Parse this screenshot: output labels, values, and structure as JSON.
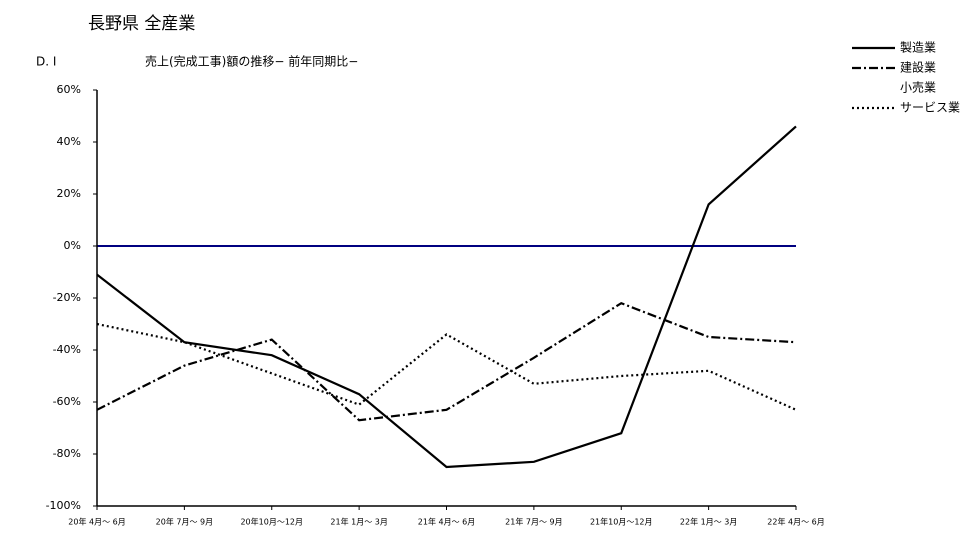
{
  "chart_data": {
    "type": "line",
    "title": "長野県 全産業",
    "y_label": "D. I",
    "subtitle": "売上(完成工事)額の推移− 前年同期比−",
    "categories": [
      "20年 4月～ 6月",
      "20年 7月～ 9月",
      "20年10月～12月",
      "21年 1月～ 3月",
      "21年 4月～ 6月",
      "21年 7月～ 9月",
      "21年10月～12月",
      "22年 1月～ 3月",
      "22年 4月～ 6月"
    ],
    "series": [
      {
        "name": "製造業",
        "color": "#000000",
        "dash": "solid",
        "values": [
          -11,
          -37,
          -42,
          -57,
          -85,
          -83,
          -72,
          16,
          46
        ]
      },
      {
        "name": "建設業",
        "color": "#000000",
        "dash": "dashdot",
        "values": [
          -63,
          -46,
          -36,
          -67,
          -63,
          -43,
          -22,
          -35,
          -37
        ]
      },
      {
        "name": "小売業",
        "color": "#ffffff",
        "dash": "solid",
        "values": [
          null,
          null,
          null,
          null,
          null,
          null,
          null,
          null,
          null
        ]
      },
      {
        "name": "サービス業",
        "color": "#000000",
        "dash": "dotted",
        "values": [
          -30,
          -37,
          -49,
          -61,
          -34,
          -53,
          -50,
          -48,
          -63
        ]
      }
    ],
    "ylim": [
      -100,
      60
    ],
    "yticks": [
      {
        "value": -100,
        "label": "-100%"
      },
      {
        "value": -80,
        "label": "-80%"
      },
      {
        "value": -60,
        "label": "-60%"
      },
      {
        "value": -40,
        "label": "-40%"
      },
      {
        "value": -20,
        "label": "-20%"
      },
      {
        "value": 0,
        "label": "0%"
      },
      {
        "value": 20,
        "label": "20%"
      },
      {
        "value": 40,
        "label": "40%"
      },
      {
        "value": 60,
        "label": "60%"
      }
    ],
    "zero_line_color": "#000080",
    "legend": "right"
  }
}
